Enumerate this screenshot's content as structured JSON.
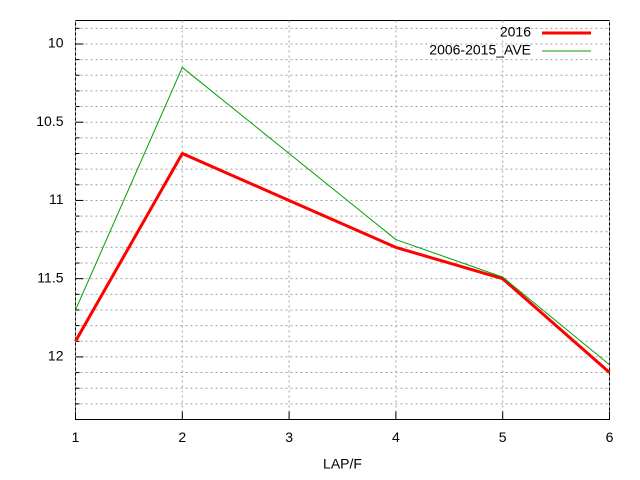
{
  "chart_data": {
    "type": "line",
    "xlabel": "LAP/F",
    "x": [
      1,
      2,
      3,
      4,
      5,
      6
    ],
    "series": [
      {
        "name": "2016",
        "color": "#ff0000",
        "values": [
          11.9,
          10.7,
          11.0,
          11.3,
          11.5,
          12.1
        ]
      },
      {
        "name": "2006-2015_AVE",
        "color": "#00a000",
        "values": [
          11.7,
          10.15,
          10.7,
          11.25,
          11.49,
          12.05
        ]
      }
    ],
    "xlim": [
      1,
      6
    ],
    "xticks": [
      1,
      2,
      3,
      4,
      5,
      6
    ],
    "ylim": [
      12.4,
      9.85
    ],
    "yticks": [
      10,
      10.5,
      11,
      11.5,
      12
    ],
    "yminorticks": [
      9.9,
      10.1,
      10.2,
      10.3,
      10.4,
      10.6,
      10.7,
      10.8,
      10.9,
      11.1,
      11.2,
      11.3,
      11.4,
      11.6,
      11.7,
      11.8,
      11.9,
      12.1,
      12.2,
      12.3
    ],
    "grid": true,
    "legend": "upper-right"
  }
}
